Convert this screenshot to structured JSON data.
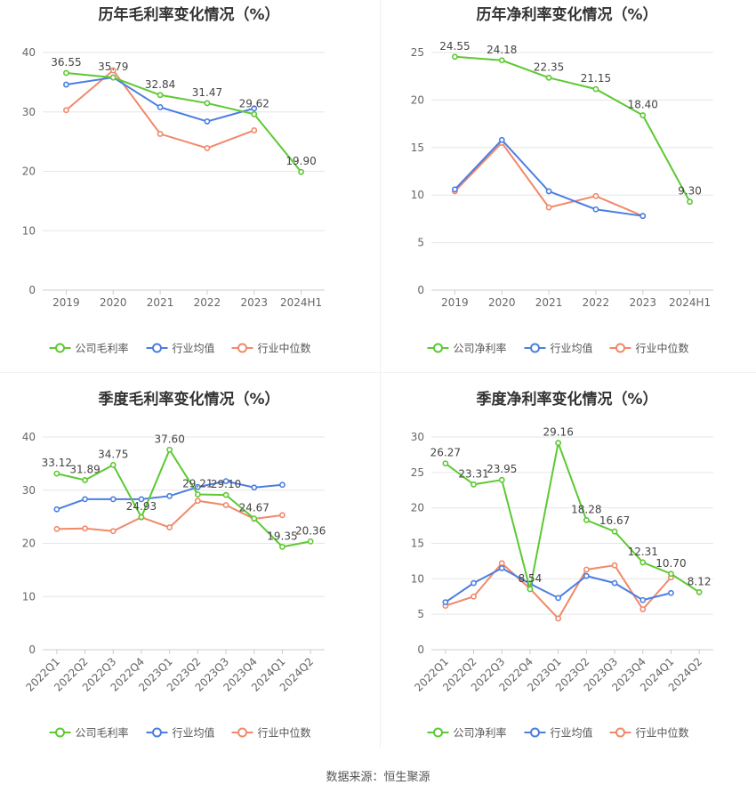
{
  "source_text": "数据来源：恒生聚源",
  "chart_data": [
    {
      "type": "line",
      "title": "历年毛利率变化情况（%）",
      "categories": [
        "2019",
        "2020",
        "2021",
        "2022",
        "2023",
        "2024H1"
      ],
      "ylim": [
        0,
        40
      ],
      "yticks": [
        0,
        10,
        20,
        30,
        40
      ],
      "grid": true,
      "legend_position": "bottom",
      "rotate_labels": false,
      "series": [
        {
          "name": "公司毛利率",
          "color": "#5cc932",
          "values": [
            36.55,
            35.79,
            32.84,
            31.47,
            29.62,
            19.9
          ],
          "labels": [
            "36.55",
            "35.79",
            "32.84",
            "31.47",
            "29.62",
            "19.90"
          ]
        },
        {
          "name": "行业均值",
          "color": "#4b7ee2",
          "values": [
            34.6,
            35.8,
            30.8,
            28.4,
            30.6,
            null
          ]
        },
        {
          "name": "行业中位数",
          "color": "#f0896a",
          "values": [
            30.3,
            37.0,
            26.3,
            23.9,
            26.9,
            null
          ]
        }
      ]
    },
    {
      "type": "line",
      "title": "历年净利率变化情况（%）",
      "categories": [
        "2019",
        "2020",
        "2021",
        "2022",
        "2023",
        "2024H1"
      ],
      "ylim": [
        0,
        25
      ],
      "yticks": [
        0,
        5,
        10,
        15,
        20,
        25
      ],
      "grid": true,
      "legend_position": "bottom",
      "rotate_labels": false,
      "series": [
        {
          "name": "公司净利率",
          "color": "#5cc932",
          "values": [
            24.55,
            24.18,
            22.35,
            21.15,
            18.4,
            9.3
          ],
          "labels": [
            "24.55",
            "24.18",
            "22.35",
            "21.15",
            "18.40",
            "9.30"
          ]
        },
        {
          "name": "行业均值",
          "color": "#4b7ee2",
          "values": [
            10.6,
            15.8,
            10.4,
            8.5,
            7.8,
            null
          ]
        },
        {
          "name": "行业中位数",
          "color": "#f0896a",
          "values": [
            10.4,
            15.5,
            8.7,
            9.9,
            7.8,
            null
          ]
        }
      ]
    },
    {
      "type": "line",
      "title": "季度毛利率变化情况（%）",
      "categories": [
        "2022Q1",
        "2022Q2",
        "2022Q3",
        "2022Q4",
        "2023Q1",
        "2023Q2",
        "2023Q3",
        "2023Q4",
        "2024Q1",
        "2024Q2"
      ],
      "ylim": [
        0,
        40
      ],
      "yticks": [
        0,
        10,
        20,
        30,
        40
      ],
      "grid": true,
      "legend_position": "bottom",
      "rotate_labels": true,
      "series": [
        {
          "name": "公司毛利率",
          "color": "#5cc932",
          "values": [
            33.12,
            31.89,
            34.75,
            24.93,
            37.6,
            29.21,
            29.1,
            24.67,
            19.35,
            20.36
          ],
          "labels": [
            "33.12",
            "31.89",
            "34.75",
            "24.93",
            "37.60",
            "29.21",
            "29.10",
            "24.67",
            "19.35",
            "20.36"
          ]
        },
        {
          "name": "行业均值",
          "color": "#4b7ee2",
          "values": [
            26.4,
            28.3,
            28.3,
            28.3,
            28.9,
            30.6,
            31.7,
            30.5,
            31.0,
            null
          ]
        },
        {
          "name": "行业中位数",
          "color": "#f0896a",
          "values": [
            22.7,
            22.8,
            22.3,
            24.9,
            23.0,
            28.0,
            27.2,
            24.6,
            25.3,
            null
          ]
        }
      ]
    },
    {
      "type": "line",
      "title": "季度净利率变化情况（%）",
      "categories": [
        "2022Q1",
        "2022Q2",
        "2022Q3",
        "2022Q4",
        "2023Q1",
        "2023Q2",
        "2023Q3",
        "2023Q4",
        "2024Q1",
        "2024Q2"
      ],
      "ylim": [
        0,
        30
      ],
      "yticks": [
        0,
        5,
        10,
        15,
        20,
        25,
        30
      ],
      "grid": true,
      "legend_position": "bottom",
      "rotate_labels": true,
      "series": [
        {
          "name": "公司净利率",
          "color": "#5cc932",
          "values": [
            26.27,
            23.31,
            23.95,
            8.54,
            29.16,
            18.28,
            16.67,
            12.31,
            10.7,
            8.12
          ],
          "labels": [
            "26.27",
            "23.31",
            "23.95",
            "8.54",
            "29.16",
            "18.28",
            "16.67",
            "12.31",
            "10.70",
            "8.12"
          ]
        },
        {
          "name": "行业均值",
          "color": "#4b7ee2",
          "values": [
            6.7,
            9.4,
            11.5,
            9.3,
            7.3,
            10.4,
            9.4,
            7.0,
            8.0,
            null
          ]
        },
        {
          "name": "行业中位数",
          "color": "#f0896a",
          "values": [
            6.2,
            7.5,
            12.2,
            8.6,
            4.4,
            11.3,
            11.9,
            5.7,
            10.2,
            null
          ]
        }
      ]
    }
  ]
}
